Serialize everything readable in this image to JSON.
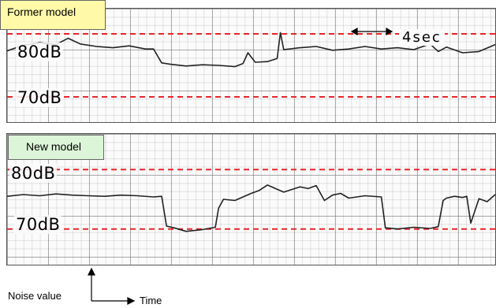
{
  "chart_data": [
    {
      "type": "line",
      "label": "Former model",
      "ylabel": "Noise value",
      "xlabel": "Time",
      "unit": "dB",
      "reference_lines": [
        {
          "label": "80dB",
          "value": 80
        },
        {
          "label": "70dB",
          "value": 70
        }
      ],
      "scale_annotation": "4sec",
      "ylim": [
        66,
        84
      ],
      "xlim": [
        0,
        60
      ],
      "grid": true,
      "series": [
        {
          "color": "#222222",
          "x": [
            0,
            2,
            4,
            6,
            7.5,
            9,
            11,
            13,
            15,
            17,
            18,
            19,
            20,
            22,
            24,
            26,
            28,
            29,
            29.6,
            30.5,
            32,
            33.2,
            33.6,
            34,
            36,
            38,
            40,
            42,
            44,
            46,
            48,
            50,
            52,
            53,
            54,
            56,
            58,
            60
          ],
          "y": [
            77.3,
            78.2,
            78.6,
            78.3,
            79.3,
            78.4,
            78.0,
            77.8,
            78.1,
            77.6,
            77.6,
            75.4,
            75.2,
            74.9,
            75.1,
            75.0,
            74.8,
            75.3,
            77.0,
            75.5,
            75.6,
            76.1,
            80.2,
            77.5,
            77.8,
            78.0,
            77.4,
            77.6,
            78.0,
            77.6,
            77.8,
            77.5,
            78.4,
            77.2,
            77.9,
            77.0,
            77.2,
            78.3
          ]
        }
      ]
    },
    {
      "type": "line",
      "label": "New model",
      "ylabel": "Noise value",
      "xlabel": "Time",
      "unit": "dB",
      "reference_lines": [
        {
          "label": "80dB",
          "value": 80
        },
        {
          "label": "70dB",
          "value": 70
        }
      ],
      "ylim": [
        64,
        86
      ],
      "xlim": [
        0,
        60
      ],
      "grid": true,
      "series": [
        {
          "color": "#222222",
          "x": [
            0,
            2,
            4,
            6,
            8,
            10,
            12,
            14,
            16,
            18,
            19,
            19.6,
            20.5,
            22,
            24,
            25.6,
            26,
            26.6,
            28,
            30,
            31,
            32,
            34,
            36,
            37,
            38,
            39,
            40,
            41,
            42,
            44,
            46,
            46.5,
            48,
            50,
            52,
            53,
            53.6,
            54,
            55,
            56,
            56.5,
            57,
            58,
            59,
            60
          ],
          "y": [
            75.5,
            75.8,
            75.6,
            75.9,
            75.7,
            75.6,
            75.5,
            75.7,
            75.6,
            75.4,
            75.5,
            70.5,
            70.2,
            69.6,
            69.9,
            70.3,
            73.5,
            75.0,
            74.8,
            76.0,
            76.5,
            77.4,
            76.2,
            77.1,
            76.8,
            77.3,
            74.8,
            75.7,
            76.0,
            75.2,
            75.6,
            75.4,
            70.2,
            70.0,
            70.3,
            70.1,
            70.4,
            74.8,
            75.2,
            75.5,
            75.3,
            75.5,
            71.0,
            75.1,
            74.6,
            75.8
          ]
        }
      ]
    }
  ],
  "labels": {
    "former_model": "Former model",
    "new_model": "New model",
    "former_80": "80dB",
    "former_70": "70dB",
    "new_80": "80dB",
    "new_70": "70dB",
    "scale": "4sec",
    "y_axis": "Noise value",
    "x_axis": "Time"
  },
  "colors": {
    "reference_line": "#e8262a",
    "trace": "#222222",
    "former_label_bg": "#fff9a8",
    "new_label_bg": "#dcf5d8"
  }
}
